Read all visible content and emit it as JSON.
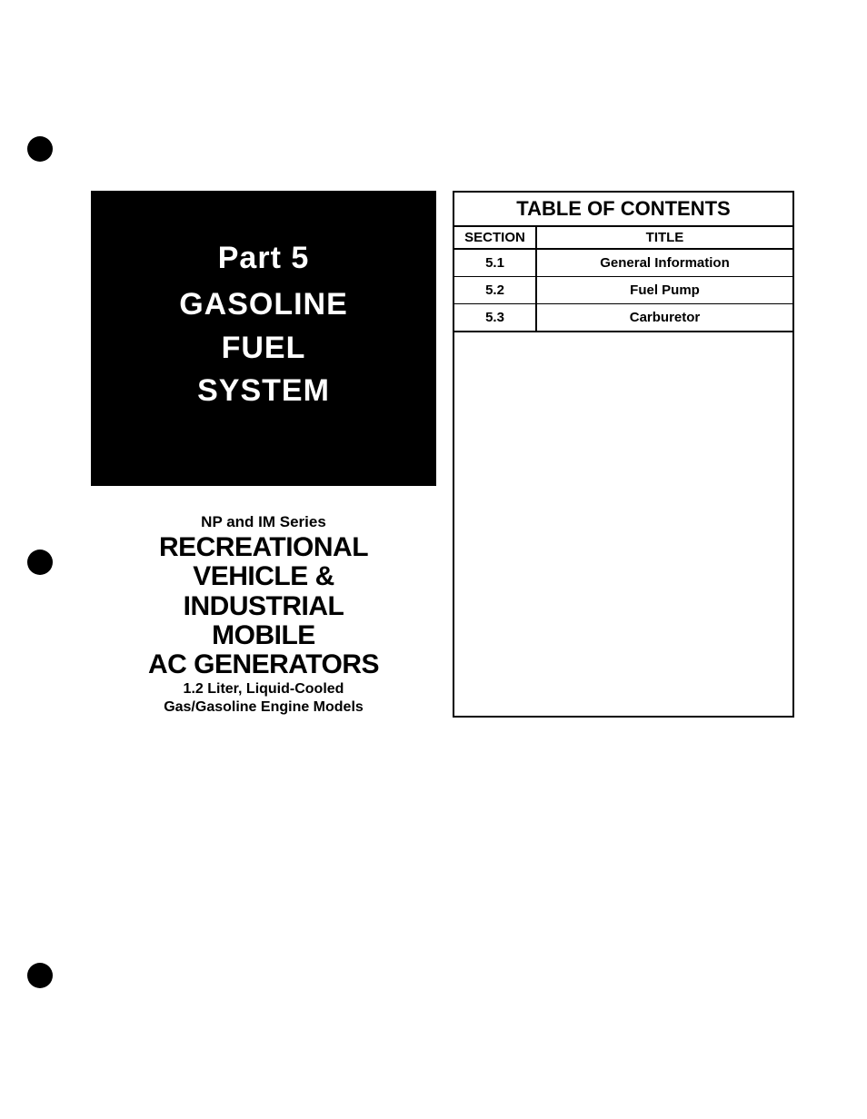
{
  "left": {
    "part_label": "Part  5",
    "title_line1": "GASOLINE",
    "title_line2": "FUEL",
    "title_line3": "SYSTEM",
    "series_label": "NP and IM Series",
    "category_line1": "RECREATIONAL",
    "category_line2": "VEHICLE &",
    "category_line3": "INDUSTRIAL",
    "category_line4": "MOBILE",
    "category_line5": "AC GENERATORS",
    "subtitle_line1": "1.2  Liter, Liquid-Cooled",
    "subtitle_line2": "Gas/Gasoline Engine Models"
  },
  "toc": {
    "header": "TABLE OF CONTENTS",
    "columns": {
      "section": "SECTION",
      "title": "TITLE"
    },
    "rows": [
      {
        "section": "5.1",
        "title": "General Information"
      },
      {
        "section": "5.2",
        "title": "Fuel Pump"
      },
      {
        "section": "5.3",
        "title": "Carburetor"
      }
    ]
  },
  "styling": {
    "page_bg": "#ffffff",
    "black_box_bg": "#000000",
    "black_box_text": "#ffffff",
    "hole_punch_color": "#000000",
    "border_color": "#000000",
    "part_fontsize": 34,
    "main_title_fontsize": 34,
    "series_label_fontsize": 17,
    "category_fontsize": 30,
    "subtitle_fontsize": 16,
    "toc_header_fontsize": 22,
    "toc_cell_fontsize": 15
  }
}
